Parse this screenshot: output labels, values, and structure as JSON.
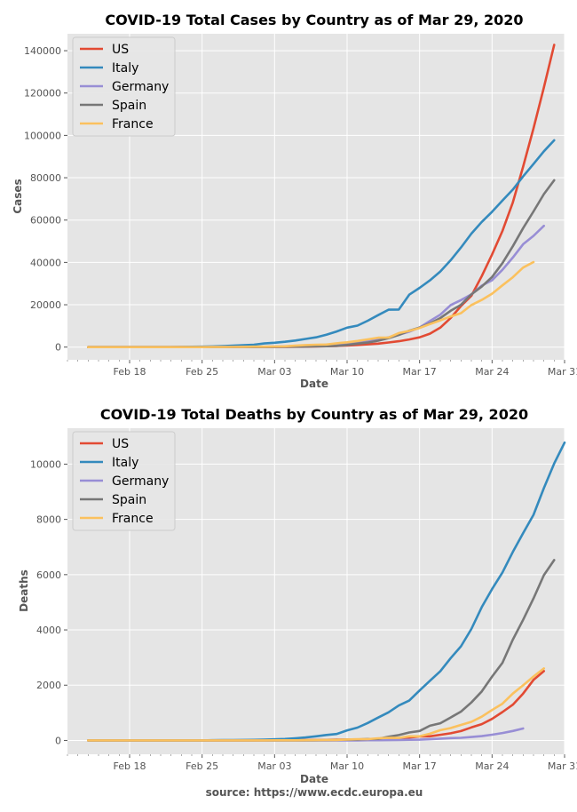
{
  "footer": {
    "source": "source: https://www.ecdc.europa.eu"
  },
  "colors": {
    "US": "#e24a33",
    "Italy": "#348abd",
    "Germany": "#988ed5",
    "Spain": "#777777",
    "France": "#fbc15e",
    "panel": "#e5e5e5",
    "grid": "#ffffff"
  },
  "chart_data": [
    {
      "type": "line",
      "title": "COVID-19 Total Cases by Country as of Mar 29, 2020",
      "xlabel": "Date",
      "ylabel": "Cases",
      "x_start": "2020-02-14",
      "xlim": [
        "2020-02-12",
        "2020-03-31"
      ],
      "xticks": [
        {
          "label": "Feb 18",
          "date": "2020-02-18"
        },
        {
          "label": "Feb 25",
          "date": "2020-02-25"
        },
        {
          "label": "Mar 03",
          "date": "2020-03-03"
        },
        {
          "label": "Mar 10",
          "date": "2020-03-10"
        },
        {
          "label": "Mar 17",
          "date": "2020-03-17"
        },
        {
          "label": "Mar 24",
          "date": "2020-03-24"
        },
        {
          "label": "Mar 31",
          "date": "2020-03-31"
        }
      ],
      "ylim": [
        -6000,
        148000
      ],
      "yticks": [
        0,
        20000,
        40000,
        60000,
        80000,
        100000,
        120000,
        140000
      ],
      "legend": "top-left",
      "grid": true,
      "series": [
        {
          "name": "US",
          "values": [
            15,
            15,
            15,
            15,
            15,
            15,
            15,
            15,
            15,
            35,
            35,
            35,
            53,
            57,
            60,
            60,
            68,
            75,
            100,
            124,
            158,
            221,
            319,
            435,
            541,
            704,
            994,
            1301,
            1630,
            2183,
            2770,
            3613,
            4596,
            6344,
            9197,
            13779,
            19383,
            24207,
            33546,
            43734,
            54856,
            68334,
            85228,
            103321,
            122653,
            142735
          ]
        },
        {
          "name": "Italy",
          "values": [
            3,
            3,
            3,
            3,
            3,
            3,
            3,
            3,
            17,
            79,
            157,
            229,
            323,
            470,
            655,
            889,
            1128,
            1701,
            2036,
            2502,
            3089,
            3858,
            4636,
            5883,
            7375,
            9172,
            10149,
            12462,
            15113,
            17660,
            17750,
            24747,
            27980,
            31506,
            35713,
            41035,
            47021,
            53578,
            59138,
            63927,
            69176,
            74386,
            80589,
            86498,
            92472,
            97689
          ]
        },
        {
          "name": "Germany",
          "values": [
            16,
            16,
            16,
            16,
            16,
            16,
            16,
            16,
            16,
            16,
            18,
            21,
            26,
            53,
            66,
            117,
            150,
            188,
            240,
            349,
            534,
            684,
            847,
            1112,
            1296,
            1565,
            1966,
            2745,
            3675,
            4585,
            5813,
            7272,
            9257,
            12327,
            15320,
            19848,
            22213,
            24873,
            29056,
            31554,
            36508,
            42288,
            48582,
            52547,
            57298
          ]
        },
        {
          "name": "Spain",
          "values": [
            2,
            2,
            2,
            2,
            2,
            2,
            2,
            2,
            2,
            2,
            2,
            2,
            2,
            12,
            25,
            32,
            45,
            45,
            114,
            151,
            200,
            261,
            374,
            430,
            589,
            1024,
            1639,
            2140,
            3004,
            4231,
            5753,
            7753,
            9191,
            11178,
            13716,
            17147,
            19980,
            24926,
            28572,
            33089,
            39673,
            47610,
            56188,
            64059,
            72248,
            78799
          ]
        },
        {
          "name": "France",
          "values": [
            12,
            12,
            12,
            12,
            12,
            12,
            12,
            12,
            12,
            12,
            14,
            18,
            38,
            57,
            100,
            130,
            191,
            204,
            285,
            377,
            653,
            949,
            1126,
            1209,
            1784,
            2281,
            2876,
            3661,
            4469,
            4499,
            6633,
            7652,
            9043,
            10871,
            12612,
            14459,
            16018,
            19856,
            22302,
            25233,
            29155,
            32964,
            37575,
            40174
          ]
        }
      ]
    },
    {
      "type": "line",
      "title": "COVID-19 Total Deaths by Country as of Mar 29, 2020",
      "xlabel": "Date",
      "ylabel": "Deaths",
      "x_start": "2020-02-14",
      "xlim": [
        "2020-02-12",
        "2020-03-31"
      ],
      "xticks": [
        {
          "label": "Feb 18",
          "date": "2020-02-18"
        },
        {
          "label": "Feb 25",
          "date": "2020-02-25"
        },
        {
          "label": "Mar 03",
          "date": "2020-03-03"
        },
        {
          "label": "Mar 10",
          "date": "2020-03-10"
        },
        {
          "label": "Mar 17",
          "date": "2020-03-17"
        },
        {
          "label": "Mar 24",
          "date": "2020-03-24"
        },
        {
          "label": "Mar 31",
          "date": "2020-03-31"
        }
      ],
      "ylim": [
        -500,
        11300
      ],
      "yticks": [
        0,
        2000,
        4000,
        6000,
        8000,
        10000
      ],
      "legend": "top-left",
      "grid": true,
      "series": [
        {
          "name": "US",
          "values": [
            0,
            0,
            0,
            0,
            0,
            0,
            0,
            0,
            0,
            0,
            0,
            0,
            0,
            0,
            0,
            0,
            1,
            6,
            9,
            11,
            12,
            15,
            19,
            22,
            26,
            30,
            38,
            41,
            48,
            58,
            73,
            105,
            146,
            150,
            205,
            260,
            340,
            471,
            590,
            781,
            1027,
            1295,
            1695,
            2191,
            2509
          ]
        },
        {
          "name": "Italy",
          "values": [
            0,
            0,
            0,
            0,
            0,
            0,
            0,
            0,
            0,
            1,
            2,
            3,
            7,
            10,
            12,
            17,
            21,
            29,
            41,
            52,
            79,
            107,
            148,
            197,
            233,
            366,
            463,
            631,
            827,
            1016,
            1266,
            1441,
            1809,
            2158,
            2503,
            2978,
            3405,
            4032,
            4825,
            5476,
            6077,
            6820,
            7503,
            8165,
            9134,
            10023,
            10779
          ]
        },
        {
          "name": "Germany",
          "values": [
            0,
            0,
            0,
            0,
            0,
            0,
            0,
            0,
            0,
            0,
            0,
            0,
            0,
            0,
            0,
            0,
            0,
            0,
            0,
            0,
            0,
            0,
            0,
            2,
            2,
            3,
            3,
            7,
            9,
            11,
            17,
            24,
            28,
            44,
            67,
            84,
            94,
            123,
            157,
            206,
            267,
            342,
            433
          ]
        },
        {
          "name": "Spain",
          "values": [
            0,
            0,
            0,
            0,
            0,
            0,
            0,
            0,
            0,
            0,
            0,
            0,
            0,
            0,
            0,
            0,
            0,
            0,
            0,
            1,
            2,
            3,
            5,
            10,
            17,
            28,
            35,
            54,
            55,
            133,
            195,
            289,
            342,
            533,
            623,
            830,
            1043,
            1375,
            1772,
            2311,
            2808,
            3647,
            4365,
            5138,
            5982,
            6528
          ]
        },
        {
          "name": "France",
          "values": [
            1,
            1,
            1,
            1,
            1,
            1,
            1,
            1,
            1,
            1,
            1,
            1,
            2,
            2,
            2,
            2,
            2,
            3,
            4,
            4,
            6,
            9,
            11,
            19,
            19,
            33,
            48,
            48,
            79,
            91,
            91,
            148,
            148,
            244,
            372,
            450,
            562,
            674,
            860,
            1100,
            1331,
            1696,
            1995,
            2314,
            2606
          ]
        }
      ]
    }
  ]
}
